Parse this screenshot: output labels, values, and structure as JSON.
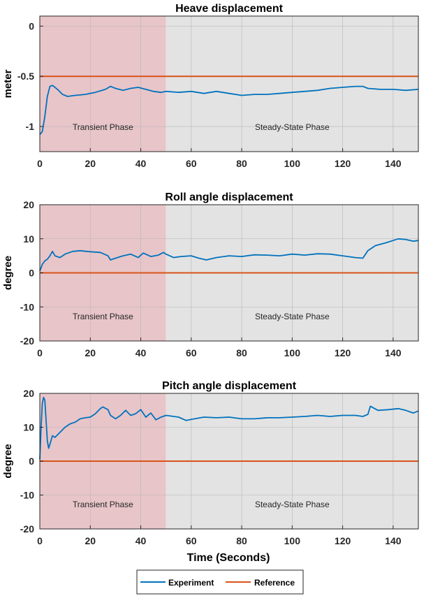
{
  "colors": {
    "experiment": "#0072BD",
    "reference": "#D95319",
    "transient_fill": "#E8C5C9",
    "steady_fill": "#E3E3E3",
    "grid": "#B5B5B5"
  },
  "legend": {
    "placement": "bottom-center",
    "experiment": "Experiment",
    "reference": "Reference"
  },
  "xlabel": "Time (Seconds)",
  "chart_data": [
    {
      "type": "line",
      "title": "Heave displacement",
      "ylabel": "meter",
      "xlim": [
        0,
        150
      ],
      "ylim": [
        -1.25,
        0.1
      ],
      "xticks": [
        0,
        20,
        40,
        60,
        80,
        100,
        120,
        140
      ],
      "yticks": [
        0,
        -0.5,
        -1
      ],
      "ytick_labels": [
        "0",
        "-0.5",
        "-1"
      ],
      "grid": true,
      "regions": [
        {
          "label": "Transient Phase",
          "x": [
            0,
            50
          ]
        },
        {
          "label": "Steady-State Phase",
          "x": [
            50,
            150
          ]
        }
      ],
      "series": [
        {
          "name": "Experiment",
          "x": [
            0,
            1,
            2,
            3,
            4,
            5,
            7,
            9,
            11,
            14,
            18,
            22,
            26,
            28,
            30,
            33,
            36,
            39,
            42,
            45,
            48,
            50,
            55,
            60,
            65,
            70,
            75,
            80,
            85,
            90,
            95,
            100,
            105,
            110,
            115,
            120,
            125,
            128,
            130,
            135,
            140,
            145,
            150
          ],
          "y": [
            -1.08,
            -1.05,
            -0.9,
            -0.7,
            -0.6,
            -0.59,
            -0.63,
            -0.68,
            -0.7,
            -0.69,
            -0.68,
            -0.66,
            -0.63,
            -0.6,
            -0.62,
            -0.64,
            -0.62,
            -0.61,
            -0.63,
            -0.65,
            -0.66,
            -0.65,
            -0.66,
            -0.65,
            -0.67,
            -0.65,
            -0.67,
            -0.69,
            -0.68,
            -0.68,
            -0.67,
            -0.66,
            -0.65,
            -0.64,
            -0.62,
            -0.61,
            -0.6,
            -0.6,
            -0.62,
            -0.63,
            -0.63,
            -0.64,
            -0.63
          ]
        },
        {
          "name": "Reference",
          "x": [
            0,
            150
          ],
          "y": [
            -0.5,
            -0.5
          ]
        }
      ]
    },
    {
      "type": "line",
      "title": "Roll angle displacement",
      "ylabel": "degree",
      "xlim": [
        0,
        150
      ],
      "ylim": [
        -20,
        20
      ],
      "xticks": [
        0,
        20,
        40,
        60,
        80,
        100,
        120,
        140
      ],
      "yticks": [
        20,
        10,
        0,
        -10,
        -20
      ],
      "ytick_labels": [
        "20",
        "10",
        "0",
        "-10",
        "-20"
      ],
      "grid": true,
      "regions": [
        {
          "label": "Transient Phase",
          "x": [
            0,
            50
          ]
        },
        {
          "label": "Steady-State Phase",
          "x": [
            50,
            150
          ]
        }
      ],
      "series": [
        {
          "name": "Experiment",
          "x": [
            0,
            1,
            2,
            3,
            4,
            5,
            6,
            8,
            10,
            13,
            16,
            20,
            24,
            27,
            28,
            30,
            33,
            36,
            39,
            41,
            44,
            47,
            49,
            50,
            53,
            56,
            60,
            63,
            66,
            70,
            75,
            80,
            85,
            90,
            95,
            100,
            105,
            110,
            115,
            120,
            125,
            128,
            130,
            133,
            137,
            140,
            142,
            145,
            148,
            150
          ],
          "y": [
            0.5,
            2.5,
            3.5,
            4,
            5,
            6.3,
            5,
            4.5,
            5.5,
            6.3,
            6.5,
            6.2,
            6,
            5,
            3.8,
            4.3,
            5,
            5.5,
            4.5,
            5.8,
            4.8,
            5.2,
            6,
            5.5,
            4.5,
            4.8,
            5,
            4.3,
            3.8,
            4.5,
            5,
            4.8,
            5.3,
            5.2,
            5,
            5.5,
            5.2,
            5.6,
            5.5,
            5,
            4.5,
            4.3,
            6.5,
            8,
            8.8,
            9.5,
            10,
            9.8,
            9.3,
            9.5
          ]
        },
        {
          "name": "Reference",
          "x": [
            0,
            150
          ],
          "y": [
            0,
            0
          ]
        }
      ]
    },
    {
      "type": "line",
      "title": "Pitch angle displacement",
      "ylabel": "degree",
      "xlim": [
        0,
        150
      ],
      "ylim": [
        -20,
        20
      ],
      "xticks": [
        0,
        20,
        40,
        60,
        80,
        100,
        120,
        140
      ],
      "yticks": [
        20,
        10,
        0,
        -10,
        -20
      ],
      "ytick_labels": [
        "20",
        "10",
        "0",
        "-10",
        "-20"
      ],
      "grid": true,
      "regions": [
        {
          "label": "Transient Phase",
          "x": [
            0,
            50
          ]
        },
        {
          "label": "Steady-State Phase",
          "x": [
            50,
            150
          ]
        }
      ],
      "series": [
        {
          "name": "Experiment",
          "x": [
            0,
            0.5,
            1,
            1.5,
            2,
            2.5,
            3,
            3.5,
            4,
            5,
            6,
            8,
            10,
            12,
            14,
            16,
            18,
            20,
            22,
            24,
            25,
            27,
            28,
            30,
            32,
            34,
            36,
            38,
            40,
            42,
            44,
            46,
            48,
            50,
            55,
            58,
            60,
            65,
            70,
            75,
            80,
            85,
            90,
            95,
            100,
            105,
            110,
            115,
            120,
            125,
            128,
            130,
            131,
            134,
            138,
            142,
            145,
            148,
            150
          ],
          "y": [
            0.5,
            10,
            17,
            18.8,
            18,
            12,
            6,
            3.8,
            5,
            7.5,
            7,
            8.5,
            10,
            11,
            11.5,
            12.5,
            12.8,
            13,
            14,
            15.5,
            16,
            15.2,
            13.5,
            12.5,
            13.5,
            15,
            13.5,
            14,
            15.2,
            13,
            14.2,
            12.2,
            13,
            13.5,
            13,
            12,
            12.3,
            13,
            12.8,
            13,
            12.5,
            12.5,
            12.8,
            12.8,
            13,
            13.2,
            13.5,
            13.2,
            13.5,
            13.5,
            13.2,
            13.8,
            16.2,
            15,
            15.2,
            15.5,
            15,
            14.2,
            14.8
          ]
        },
        {
          "name": "Reference",
          "x": [
            0,
            150
          ],
          "y": [
            0,
            0
          ]
        }
      ]
    }
  ]
}
